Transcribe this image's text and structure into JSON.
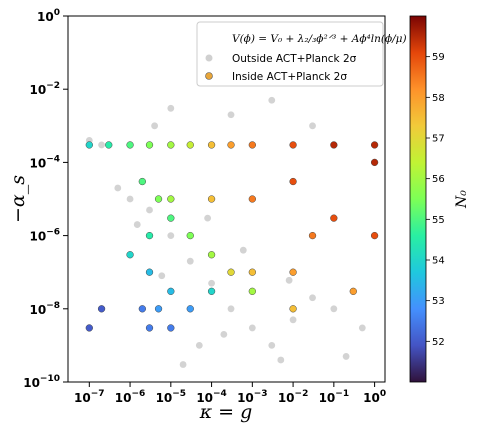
{
  "chart_data": {
    "type": "scatter",
    "title": "",
    "xlabel": "κ = g",
    "ylabel": "−α_s",
    "x_scale": "log",
    "y_scale": "log",
    "xlim": [
      3e-08,
      1.8
    ],
    "ylim": [
      1e-10,
      1
    ],
    "x_tick_labels": [
      {
        "base": "10",
        "exp": "−7",
        "value": 1e-07
      },
      {
        "base": "10",
        "exp": "−6",
        "value": 1e-06
      },
      {
        "base": "10",
        "exp": "−5",
        "value": 1e-05
      },
      {
        "base": "10",
        "exp": "−4",
        "value": 0.0001
      },
      {
        "base": "10",
        "exp": "−3",
        "value": 0.001
      },
      {
        "base": "10",
        "exp": "−2",
        "value": 0.01
      },
      {
        "base": "10",
        "exp": "−1",
        "value": 0.1
      },
      {
        "base": "10",
        "exp": "0",
        "value": 1
      }
    ],
    "y_tick_labels": [
      {
        "base": "10",
        "exp": "0",
        "value": 1
      },
      {
        "base": "10",
        "exp": "−2",
        "value": 0.01
      },
      {
        "base": "10",
        "exp": "−4",
        "value": 0.0001
      },
      {
        "base": "10",
        "exp": "−6",
        "value": 1e-06
      },
      {
        "base": "10",
        "exp": "−8",
        "value": 1e-08
      },
      {
        "base": "10",
        "exp": "−10",
        "value": 1e-10
      }
    ],
    "legend": {
      "placement": "top-right",
      "formula": "V(ϕ) = V₀ + λ₂/₃ϕ²ᐟ³ + Aϕ⁴ln(ϕ/μ)",
      "entries": [
        {
          "label": "Outside ACT+Planck 2σ",
          "color": "#c8c8c8"
        },
        {
          "label": "Inside ACT+Planck 2σ",
          "color": "#e8a63a"
        }
      ]
    },
    "colorbar": {
      "label": "N₀",
      "range": [
        51,
        60
      ],
      "ticks": [
        "52",
        "53",
        "54",
        "55",
        "56",
        "57",
        "58",
        "59"
      ],
      "colormap": "turbo"
    },
    "series": [
      {
        "name": "Outside ACT+Planck 2σ",
        "color": "#d3d3d3",
        "description_regions": [
          {
            "x_range": [
              1e-07,
              1
            ],
            "y_range": [
              1e-09,
              0.001
            ],
            "density": "high"
          },
          {
            "x_range": [
              1e-05,
              1
            ],
            "y_range": [
              1e-10,
              1e-07
            ],
            "density": "medium"
          },
          {
            "x_range": [
              1e-07,
              1
            ],
            "y_band": [
              0.0002,
              0.0006
            ],
            "density": "very high"
          }
        ],
        "points": [
          [
            1e-07,
            0.0004
          ],
          [
            2e-07,
            0.0003
          ],
          [
            5e-07,
            2e-05
          ],
          [
            1e-06,
            1e-05
          ],
          [
            3e-06,
            5e-06
          ],
          [
            1e-05,
            1e-06
          ],
          [
            3e-05,
            2e-07
          ],
          [
            0.0001,
            5e-08
          ],
          [
            0.0003,
            1e-08
          ],
          [
            0.001,
            3e-09
          ],
          [
            0.003,
            1e-09
          ],
          [
            0.01,
            5e-09
          ],
          [
            0.03,
            2e-08
          ],
          [
            0.1,
            1e-08
          ],
          [
            0.5,
            3e-09
          ],
          [
            2e-05,
            3e-10
          ],
          [
            5e-05,
            1e-09
          ],
          [
            0.0002,
            2e-09
          ],
          [
            0.005,
            4e-10
          ],
          [
            0.2,
            5e-10
          ],
          [
            4e-06,
            0.001
          ],
          [
            1e-05,
            0.003
          ],
          [
            0.0003,
            0.002
          ],
          [
            0.003,
            0.005
          ],
          [
            0.03,
            0.001
          ],
          [
            1.5e-06,
            2e-06
          ],
          [
            6e-06,
            8e-08
          ],
          [
            8e-05,
            3e-06
          ],
          [
            0.0006,
            4e-07
          ],
          [
            0.008,
            6e-08
          ]
        ]
      },
      {
        "name": "Inside ACT+Planck 2σ",
        "color_by": "N0",
        "points": [
          {
            "x": 1e-07,
            "y": 0.0003,
            "N0": 54
          },
          {
            "x": 3e-07,
            "y": 0.0003,
            "N0": 54.5
          },
          {
            "x": 1e-06,
            "y": 0.0003,
            "N0": 55
          },
          {
            "x": 3e-06,
            "y": 0.0003,
            "N0": 55.5
          },
          {
            "x": 1e-05,
            "y": 0.0003,
            "N0": 56
          },
          {
            "x": 3e-05,
            "y": 0.0003,
            "N0": 56.5
          },
          {
            "x": 0.0001,
            "y": 0.0003,
            "N0": 57.5
          },
          {
            "x": 0.0003,
            "y": 0.0003,
            "N0": 58
          },
          {
            "x": 0.001,
            "y": 0.0003,
            "N0": 58.5
          },
          {
            "x": 0.01,
            "y": 0.0003,
            "N0": 59
          },
          {
            "x": 0.1,
            "y": 0.0003,
            "N0": 59.5
          },
          {
            "x": 1,
            "y": 0.0003,
            "N0": 59.5
          },
          {
            "x": 2e-06,
            "y": 3e-05,
            "N0": 55
          },
          {
            "x": 5e-06,
            "y": 1e-05,
            "N0": 55.5
          },
          {
            "x": 1e-05,
            "y": 3e-06,
            "N0": 55
          },
          {
            "x": 3e-05,
            "y": 1e-06,
            "N0": 55.5
          },
          {
            "x": 0.0001,
            "y": 3e-07,
            "N0": 56
          },
          {
            "x": 0.0003,
            "y": 1e-07,
            "N0": 57
          },
          {
            "x": 0.001,
            "y": 1e-07,
            "N0": 57.5
          },
          {
            "x": 0.01,
            "y": 1e-07,
            "N0": 58
          },
          {
            "x": 0.03,
            "y": 1e-06,
            "N0": 58.5
          },
          {
            "x": 0.1,
            "y": 3e-06,
            "N0": 59
          },
          {
            "x": 0.001,
            "y": 1e-05,
            "N0": 58.5
          },
          {
            "x": 0.01,
            "y": 3e-05,
            "N0": 59
          },
          {
            "x": 0.0001,
            "y": 1e-05,
            "N0": 57.5
          },
          {
            "x": 1e-05,
            "y": 1e-05,
            "N0": 56
          },
          {
            "x": 3e-06,
            "y": 1e-06,
            "N0": 54.5
          },
          {
            "x": 1e-06,
            "y": 3e-07,
            "N0": 54
          },
          {
            "x": 3e-06,
            "y": 1e-07,
            "N0": 53.5
          },
          {
            "x": 1e-05,
            "y": 3e-08,
            "N0": 53.5
          },
          {
            "x": 5e-06,
            "y": 1e-08,
            "N0": 53
          },
          {
            "x": 2e-06,
            "y": 1e-08,
            "N0": 52.5
          },
          {
            "x": 2e-07,
            "y": 1e-08,
            "N0": 52
          },
          {
            "x": 1e-07,
            "y": 3e-09,
            "N0": 52
          },
          {
            "x": 3e-06,
            "y": 3e-09,
            "N0": 52.5
          },
          {
            "x": 1e-05,
            "y": 3e-09,
            "N0": 52.5
          },
          {
            "x": 3e-05,
            "y": 1e-08,
            "N0": 53
          },
          {
            "x": 0.0001,
            "y": 3e-08,
            "N0": 54
          },
          {
            "x": 0.001,
            "y": 3e-08,
            "N0": 56
          },
          {
            "x": 0.01,
            "y": 1e-08,
            "N0": 57.5
          },
          {
            "x": 0.3,
            "y": 3e-08,
            "N0": 58
          },
          {
            "x": 1,
            "y": 1e-06,
            "N0": 59
          },
          {
            "x": 1,
            "y": 0.0001,
            "N0": 59.5
          }
        ]
      }
    ]
  }
}
